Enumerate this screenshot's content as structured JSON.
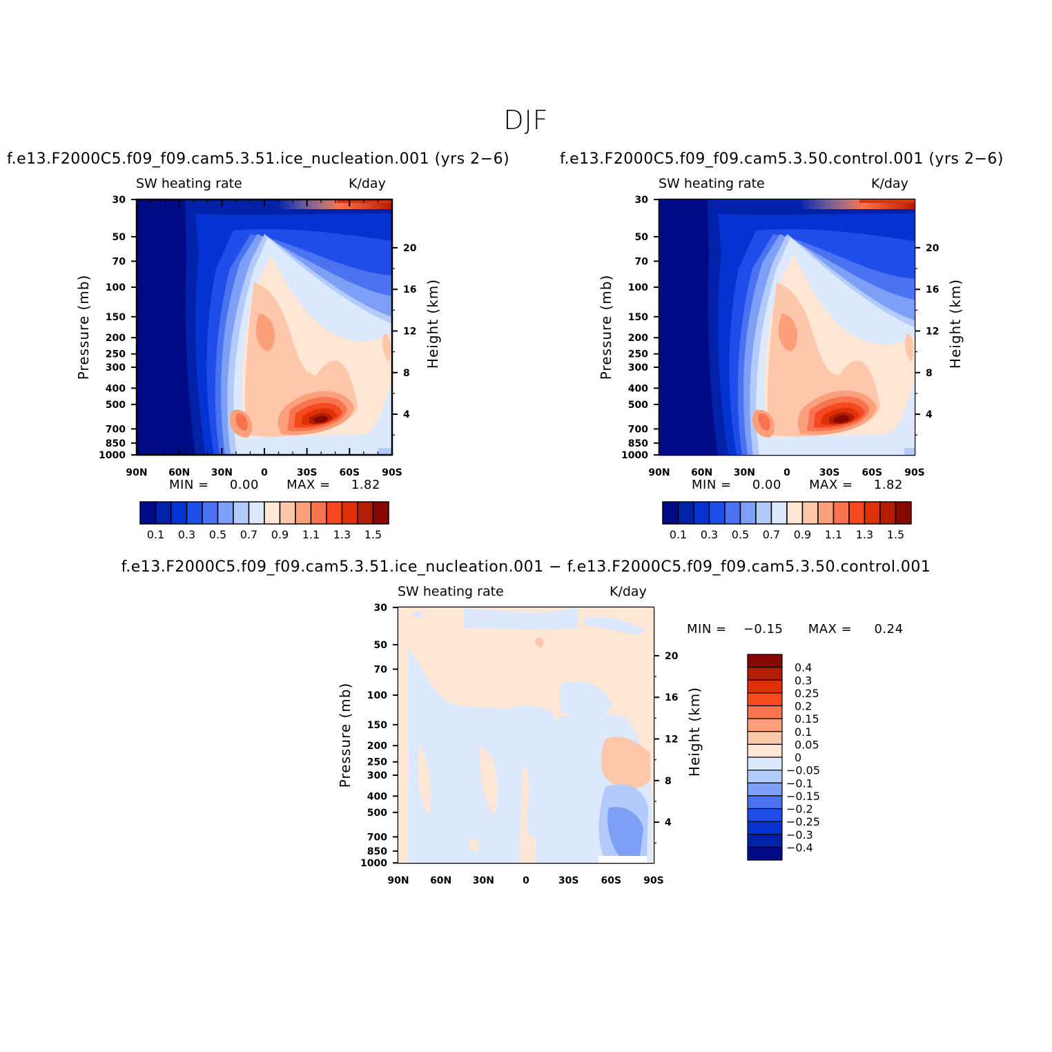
{
  "figure": {
    "title": "DJF"
  },
  "chart_data": [
    {
      "type": "heatmap",
      "name": "panel-ice-nucleation",
      "title": "f.e13.F2000C5.f09_f09.cam5.3.51.ice_nucleation.001 (yrs 2−6)",
      "left_label": "SW heating rate",
      "right_label": "K/day",
      "xlabel": "",
      "ylabel": "Pressure (mb)",
      "y2label": "Height (km)",
      "x_ticks": [
        "90N",
        "60N",
        "30N",
        "0",
        "30S",
        "60S",
        "90S"
      ],
      "y_ticks": [
        "30",
        "50",
        "70",
        "100",
        "150",
        "200",
        "250",
        "300",
        "400",
        "500",
        "700",
        "850",
        "1000"
      ],
      "y2_ticks": [
        "20",
        "16",
        "12",
        "8",
        "4"
      ],
      "stats": {
        "min_label": "MIN =",
        "min": "0.00",
        "max_label": "MAX =",
        "max": "1.82"
      },
      "colorbar": {
        "orientation": "horizontal",
        "labels": [
          "0.1",
          "0.3",
          "0.5",
          "0.7",
          "0.9",
          "1.1",
          "1.3",
          "1.5"
        ],
        "colors": [
          "#000b85",
          "#0121a8",
          "#0433d1",
          "#1e4dea",
          "#4b73f1",
          "#7da0f6",
          "#b3cbfa",
          "#dce9fd",
          "#ffe6d5",
          "#fdc7ab",
          "#fc9f7b",
          "#f87350",
          "#f5491f",
          "#de3108",
          "#b31c05",
          "#850802"
        ]
      }
    },
    {
      "type": "heatmap",
      "name": "panel-control",
      "title": "f.e13.F2000C5.f09_f09.cam5.3.50.control.001 (yrs 2−6)",
      "left_label": "SW heating rate",
      "right_label": "K/day",
      "xlabel": "",
      "ylabel": "Pressure (mb)",
      "y2label": "Height (km)",
      "x_ticks": [
        "90N",
        "60N",
        "30N",
        "0",
        "30S",
        "60S",
        "90S"
      ],
      "y_ticks": [
        "30",
        "50",
        "70",
        "100",
        "150",
        "200",
        "250",
        "300",
        "400",
        "500",
        "700",
        "850",
        "1000"
      ],
      "y2_ticks": [
        "20",
        "16",
        "12",
        "8",
        "4"
      ],
      "stats": {
        "min_label": "MIN =",
        "min": "0.00",
        "max_label": "MAX =",
        "max": "1.82"
      },
      "colorbar": {
        "orientation": "horizontal",
        "labels": [
          "0.1",
          "0.3",
          "0.5",
          "0.7",
          "0.9",
          "1.1",
          "1.3",
          "1.5"
        ],
        "colors": [
          "#000b85",
          "#0121a8",
          "#0433d1",
          "#1e4dea",
          "#4b73f1",
          "#7da0f6",
          "#b3cbfa",
          "#dce9fd",
          "#ffe6d5",
          "#fdc7ab",
          "#fc9f7b",
          "#f87350",
          "#f5491f",
          "#de3108",
          "#b31c05",
          "#850802"
        ]
      }
    },
    {
      "type": "heatmap",
      "name": "panel-difference",
      "title": "f.e13.F2000C5.f09_f09.cam5.3.51.ice_nucleation.001 − f.e13.F2000C5.f09_f09.cam5.3.50.control.001",
      "left_label": "SW heating rate",
      "right_label": "K/day",
      "xlabel": "",
      "ylabel": "Pressure (mb)",
      "y2label": "Height (km)",
      "x_ticks": [
        "90N",
        "60N",
        "30N",
        "0",
        "30S",
        "60S",
        "90S"
      ],
      "y_ticks": [
        "30",
        "50",
        "70",
        "100",
        "150",
        "200",
        "250",
        "300",
        "400",
        "500",
        "700",
        "850",
        "1000"
      ],
      "y2_ticks": [
        "20",
        "16",
        "12",
        "8",
        "4"
      ],
      "stats": {
        "min_label": "MIN =",
        "min": "−0.15",
        "max_label": "MAX =",
        "max": "0.24"
      },
      "colorbar": {
        "orientation": "vertical",
        "labels": [
          "0.4",
          "0.3",
          "0.25",
          "0.2",
          "0.15",
          "0.1",
          "0.05",
          "0",
          "−0.05",
          "−0.1",
          "−0.15",
          "−0.2",
          "−0.25",
          "−0.3",
          "−0.4"
        ],
        "colors": [
          "#850802",
          "#b31c05",
          "#de3108",
          "#f5491f",
          "#f87350",
          "#fc9f7b",
          "#fdc7ab",
          "#ffe6d5",
          "#dce9fd",
          "#b3cbfa",
          "#7da0f6",
          "#4b73f1",
          "#1e4dea",
          "#0433d1",
          "#0121a8",
          "#000b85"
        ]
      }
    }
  ]
}
